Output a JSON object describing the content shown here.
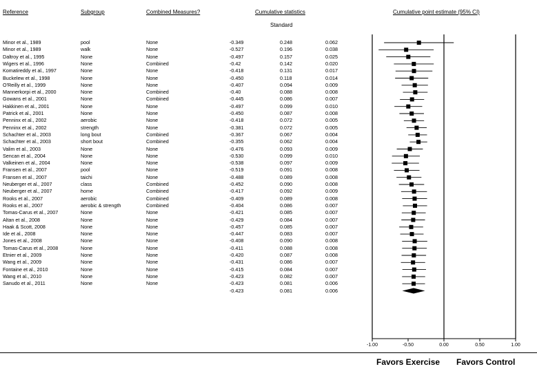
{
  "headers": {
    "reference": "Reference",
    "subgroup": "Subgroup",
    "combined": "Combined Measures?",
    "cumulative": "Cumulative statistics",
    "estimate": "Cumulative point estimate (95% CI)"
  },
  "subheader": "Standard",
  "footer": {
    "favors_exercise": "Favors Exercise",
    "favors_control": "Favors Control"
  },
  "chart_data": {
    "type": "forest",
    "xlim": [
      -1.0,
      1.0
    ],
    "xticks": [
      "-1.00",
      "-0.50",
      "0.00",
      "0.50",
      "1.00"
    ],
    "rows": [
      {
        "ref": "Minor et al., 1989",
        "sub": "pool",
        "comb": "None",
        "pt": "-0.349",
        "se": "0.248",
        "var": "0.062",
        "est": -0.349,
        "lo": -0.835,
        "hi": 0.137
      },
      {
        "ref": "Minor et al., 1989",
        "sub": "walk",
        "comb": "None",
        "pt": "-0.527",
        "se": "0.196",
        "var": "0.038",
        "est": -0.527,
        "lo": -0.911,
        "hi": -0.143
      },
      {
        "ref": "Daltroy et al., 1995",
        "sub": "None",
        "comb": "None",
        "pt": "-0.497",
        "se": "0.157",
        "var": "0.025",
        "est": -0.497,
        "lo": -0.805,
        "hi": -0.189
      },
      {
        "ref": "Wigers et al., 1996",
        "sub": "None",
        "comb": "Combined",
        "pt": "-0.42",
        "se": "0.142",
        "var": "0.020",
        "est": -0.42,
        "lo": -0.698,
        "hi": -0.142
      },
      {
        "ref": "Komatireddy et al., 1997",
        "sub": "None",
        "comb": "None",
        "pt": "-0.418",
        "se": "0.131",
        "var": "0.017",
        "est": -0.418,
        "lo": -0.675,
        "hi": -0.161
      },
      {
        "ref": "Buckelew et al., 1998",
        "sub": "None",
        "comb": "None",
        "pt": "-0.450",
        "se": "0.118",
        "var": "0.014",
        "est": -0.45,
        "lo": -0.681,
        "hi": -0.219
      },
      {
        "ref": "O'Reilly et al., 1999",
        "sub": "None",
        "comb": "None",
        "pt": "-0.407",
        "se": "0.094",
        "var": "0.009",
        "est": -0.407,
        "lo": -0.591,
        "hi": -0.223
      },
      {
        "ref": "Mannerkorpi et al., 2000",
        "sub": "None",
        "comb": "Combined",
        "pt": "-0.40",
        "se": "0.088",
        "var": "0.008",
        "est": -0.4,
        "lo": -0.572,
        "hi": -0.228
      },
      {
        "ref": "Gowans et al., 2001",
        "sub": "None",
        "comb": "Combined",
        "pt": "-0.445",
        "se": "0.086",
        "var": "0.007",
        "est": -0.445,
        "lo": -0.614,
        "hi": -0.276
      },
      {
        "ref": "Hakkinen et al., 2001",
        "sub": "None",
        "comb": "None",
        "pt": "-0.497",
        "se": "0.099",
        "var": "0.010",
        "est": -0.497,
        "lo": -0.691,
        "hi": -0.303
      },
      {
        "ref": "Patrick et al., 2001",
        "sub": "None",
        "comb": "None",
        "pt": "-0.450",
        "se": "0.087",
        "var": "0.008",
        "est": -0.45,
        "lo": -0.621,
        "hi": -0.279
      },
      {
        "ref": "Penninx et al., 2002",
        "sub": "aerobic",
        "comb": "None",
        "pt": "-0.418",
        "se": "0.072",
        "var": "0.005",
        "est": -0.418,
        "lo": -0.559,
        "hi": -0.277
      },
      {
        "ref": "Penninx et al., 2002",
        "sub": "strength",
        "comb": "None",
        "pt": "-0.381",
        "se": "0.072",
        "var": "0.005",
        "est": -0.381,
        "lo": -0.522,
        "hi": -0.24
      },
      {
        "ref": "Schachter et al., 2003",
        "sub": "long bout",
        "comb": "Combined",
        "pt": "-0.367",
        "se": "0.067",
        "var": "0.004",
        "est": -0.367,
        "lo": -0.498,
        "hi": -0.236
      },
      {
        "ref": "Schachter et al., 2003",
        "sub": "short bout",
        "comb": "Combined",
        "pt": "-0.355",
        "se": "0.062",
        "var": "0.004",
        "est": -0.355,
        "lo": -0.477,
        "hi": -0.233
      },
      {
        "ref": "Valim et al., 2003",
        "sub": "None",
        "comb": "None",
        "pt": "-0.476",
        "se": "0.093",
        "var": "0.009",
        "est": -0.476,
        "lo": -0.658,
        "hi": -0.294
      },
      {
        "ref": "Sencan et al., 2004",
        "sub": "None",
        "comb": "None",
        "pt": "-0.530",
        "se": "0.099",
        "var": "0.010",
        "est": -0.53,
        "lo": -0.724,
        "hi": -0.336
      },
      {
        "ref": "Valkeinen et al., 2004",
        "sub": "None",
        "comb": "None",
        "pt": "-0.538",
        "se": "0.097",
        "var": "0.009",
        "est": -0.538,
        "lo": -0.728,
        "hi": -0.348
      },
      {
        "ref": "Fransen et al., 2007",
        "sub": "pool",
        "comb": "None",
        "pt": "-0.519",
        "se": "0.091",
        "var": "0.008",
        "est": -0.519,
        "lo": -0.697,
        "hi": -0.341
      },
      {
        "ref": "Fransen et al., 2007",
        "sub": "taichi",
        "comb": "None",
        "pt": "-0.488",
        "se": "0.089",
        "var": "0.008",
        "est": -0.488,
        "lo": -0.662,
        "hi": -0.314
      },
      {
        "ref": "Neuberger et al., 2007",
        "sub": "class",
        "comb": "Combined",
        "pt": "-0.452",
        "se": "0.090",
        "var": "0.008",
        "est": -0.452,
        "lo": -0.628,
        "hi": -0.276
      },
      {
        "ref": "Neuberger et al., 2007",
        "sub": "home",
        "comb": "Combined",
        "pt": "-0.417",
        "se": "0.092",
        "var": "0.009",
        "est": -0.417,
        "lo": -0.597,
        "hi": -0.237
      },
      {
        "ref": "Rooks et al., 2007",
        "sub": "aerobic",
        "comb": "Combined",
        "pt": "-0.409",
        "se": "0.089",
        "var": "0.008",
        "est": -0.409,
        "lo": -0.583,
        "hi": -0.235
      },
      {
        "ref": "Rooks et al., 2007",
        "sub": "aerobic & strength",
        "comb": "Combined",
        "pt": "-0.404",
        "se": "0.086",
        "var": "0.007",
        "est": -0.404,
        "lo": -0.573,
        "hi": -0.235
      },
      {
        "ref": "Tomas-Carus et al., 2007",
        "sub": "None",
        "comb": "None",
        "pt": "-0.421",
        "se": "0.085",
        "var": "0.007",
        "est": -0.421,
        "lo": -0.588,
        "hi": -0.254
      },
      {
        "ref": "Altan et al., 2008",
        "sub": "None",
        "comb": "None",
        "pt": "-0.429",
        "se": "0.084",
        "var": "0.007",
        "est": -0.429,
        "lo": -0.594,
        "hi": -0.264
      },
      {
        "ref": "Haak & Scott, 2008",
        "sub": "None",
        "comb": "None",
        "pt": "-0.457",
        "se": "0.085",
        "var": "0.007",
        "est": -0.457,
        "lo": -0.624,
        "hi": -0.29
      },
      {
        "ref": "Ide et al., 2008",
        "sub": "None",
        "comb": "None",
        "pt": "-0.447",
        "se": "0.083",
        "var": "0.007",
        "est": -0.447,
        "lo": -0.61,
        "hi": -0.284
      },
      {
        "ref": "Jones et al., 2008",
        "sub": "None",
        "comb": "None",
        "pt": "-0.408",
        "se": "0.090",
        "var": "0.008",
        "est": -0.408,
        "lo": -0.584,
        "hi": -0.232
      },
      {
        "ref": "Tomas-Carus et al., 2008",
        "sub": "None",
        "comb": "None",
        "pt": "-0.411",
        "se": "0.088",
        "var": "0.008",
        "est": -0.411,
        "lo": -0.583,
        "hi": -0.239
      },
      {
        "ref": "Etnier et al., 2009",
        "sub": "None",
        "comb": "None",
        "pt": "-0.420",
        "se": "0.087",
        "var": "0.008",
        "est": -0.42,
        "lo": -0.591,
        "hi": -0.249
      },
      {
        "ref": "Wang et al., 2009",
        "sub": "None",
        "comb": "None",
        "pt": "-0.431",
        "se": "0.086",
        "var": "0.007",
        "est": -0.431,
        "lo": -0.6,
        "hi": -0.262
      },
      {
        "ref": "Fontaine et al., 2010",
        "sub": "None",
        "comb": "None",
        "pt": "-0.415",
        "se": "0.084",
        "var": "0.007",
        "est": -0.415,
        "lo": -0.58,
        "hi": -0.25
      },
      {
        "ref": "Wang et al., 2010",
        "sub": "None",
        "comb": "None",
        "pt": "-0.423",
        "se": "0.082",
        "var": "0.007",
        "est": -0.423,
        "lo": -0.584,
        "hi": -0.262
      },
      {
        "ref": "Sanudo et al., 2011",
        "sub": "None",
        "comb": "None",
        "pt": "-0.423",
        "se": "0.081",
        "var": "0.006",
        "est": -0.423,
        "lo": -0.582,
        "hi": -0.264
      }
    ],
    "summary": {
      "pt": "-0.423",
      "se": "0.081",
      "var": "0.006",
      "est": -0.423,
      "lo": -0.582,
      "hi": -0.264
    }
  }
}
